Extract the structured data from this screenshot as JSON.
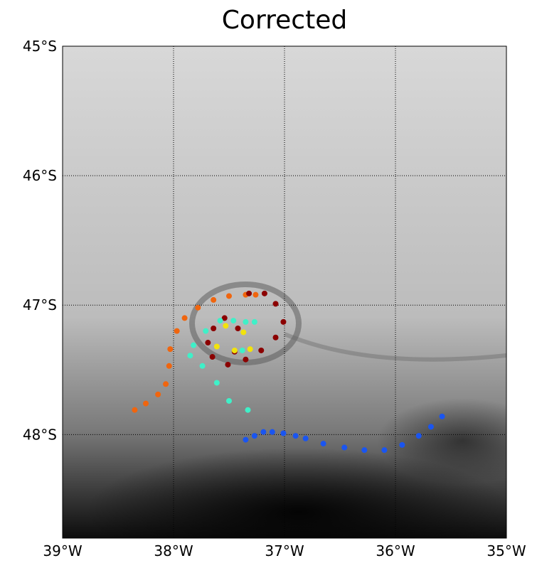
{
  "chart_data": {
    "type": "scatter",
    "title": "Corrected",
    "xlim": [
      -39,
      -35
    ],
    "ylim": [
      -45,
      -48.8
    ],
    "xticks": [
      {
        "value": -39,
        "label": "39°W"
      },
      {
        "value": -38,
        "label": "38°W"
      },
      {
        "value": -37,
        "label": "37°W"
      },
      {
        "value": -36,
        "label": "36°W"
      },
      {
        "value": -35,
        "label": "35°W"
      }
    ],
    "yticks": [
      {
        "value": -45,
        "label": "45°S"
      },
      {
        "value": -46,
        "label": "46°S"
      },
      {
        "value": -47,
        "label": "47°S"
      },
      {
        "value": -48,
        "label": "48°S"
      }
    ],
    "grid": true,
    "series": [
      {
        "color": "#f0650e",
        "x": [
          -38.35,
          -38.25,
          -38.14,
          -38.07,
          -38.04,
          -38.03,
          -37.97,
          -37.9,
          -37.78,
          -37.64,
          -37.5,
          -37.35,
          -37.26
        ],
        "y": [
          -47.81,
          -47.76,
          -47.69,
          -47.61,
          -47.47,
          -47.34,
          -47.2,
          -47.1,
          -47.02,
          -46.96,
          -46.93,
          -46.92,
          -46.92
        ]
      },
      {
        "color": "#8b0000",
        "x": [
          -37.32,
          -37.18,
          -37.08,
          -37.01,
          -37.08,
          -37.21,
          -37.35,
          -37.51,
          -37.65,
          -37.69,
          -37.64,
          -37.54,
          -37.42,
          -37.45
        ],
        "y": [
          -46.91,
          -46.91,
          -46.99,
          -47.13,
          -47.25,
          -47.35,
          -47.42,
          -47.46,
          -47.4,
          -47.29,
          -47.18,
          -47.1,
          -47.18,
          -47.36
        ]
      },
      {
        "color": "#f2e30c",
        "x": [
          -37.61,
          -37.53,
          -37.45,
          -37.37,
          -37.31
        ],
        "y": [
          -47.32,
          -47.16,
          -47.35,
          -47.21,
          -47.34
        ]
      },
      {
        "color": "#3ff0c8",
        "x": [
          -37.33,
          -37.5,
          -37.61,
          -37.74,
          -37.85,
          -37.82,
          -37.71,
          -37.58,
          -37.46,
          -37.35,
          -37.27,
          -37.38
        ],
        "y": [
          -47.81,
          -47.74,
          -47.6,
          -47.47,
          -47.39,
          -47.31,
          -47.2,
          -47.12,
          -47.12,
          -47.13,
          -47.13,
          -47.35
        ]
      },
      {
        "color": "#1a55f0",
        "x": [
          -37.35,
          -37.27,
          -37.19,
          -37.11,
          -37.01,
          -36.9,
          -36.81,
          -36.65,
          -36.46,
          -36.28,
          -36.1,
          -35.94,
          -35.79,
          -35.68,
          -35.58
        ],
        "y": [
          -48.04,
          -48.01,
          -47.98,
          -47.98,
          -47.99,
          -48.01,
          -48.03,
          -48.07,
          -48.1,
          -48.12,
          -48.12,
          -48.08,
          -48.01,
          -47.94,
          -47.86
        ]
      }
    ]
  }
}
